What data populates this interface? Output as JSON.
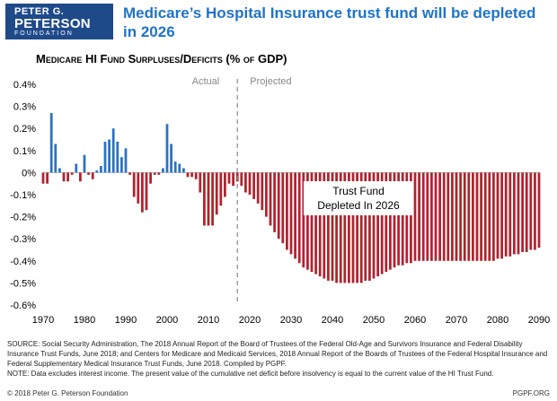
{
  "logo": {
    "line1": "PETER G.",
    "line2": "PETERSON",
    "line3": "FOUNDATION"
  },
  "headline": "Medicare’s Hospital Insurance trust fund will be depleted in 2026",
  "colors": {
    "positive": "#2a72c4",
    "negative": "#b0232e",
    "headline": "#1f73c8",
    "logo": "#1f4a8a"
  },
  "source": {
    "text": "SOURCE: Social Security Administration, The 2018 Annual Report of the Board of Trustees of the Federal Old-Age and Survivors Insurance and Federal Disability Insurance Trust Funds, June 2018; and Centers for Medicare and Medicaid Services, 2018 Annual Report of the Boards of Trustees of the Federal Hospital Insurance and Federal Supplementary Medical Insurance Trust Funds, June 2018. Compiled by PGPF.",
    "note": "NOTE: Data excludes interest income. The present value of the cumulative net deficit before insolvency is equal to the current value of the HI Trust Fund."
  },
  "footer": {
    "copyright": "© 2018 Peter G. Peterson Foundation",
    "site": "PGPF.ORG"
  },
  "chart_data": {
    "type": "bar",
    "title": "Medicare HI Fund Surpluses/Deficits (% of GDP)",
    "xlabel": "",
    "ylabel": "",
    "xlim": [
      1970,
      2090
    ],
    "ylim": [
      -0.6,
      0.4
    ],
    "x_ticks": [
      1970,
      1980,
      1990,
      2000,
      2010,
      2020,
      2030,
      2040,
      2050,
      2060,
      2070,
      2080,
      2090
    ],
    "y_ticks": [
      0.4,
      0.3,
      0.2,
      0.1,
      0,
      -0.1,
      -0.2,
      -0.3,
      -0.4,
      -0.5,
      -0.6
    ],
    "y_tick_labels": [
      "0.4%",
      "0.3%",
      "0.2%",
      "0.1%",
      "0%",
      "-0.1%",
      "-0.2%",
      "-0.3%",
      "-0.4%",
      "-0.5%",
      "-0.6%"
    ],
    "divider_year": 2017,
    "region_labels": {
      "actual": "Actual",
      "projected": "Projected"
    },
    "annotation": {
      "line1": "Trust Fund",
      "line2": "Depleted In 2026"
    },
    "years": [
      1970,
      1971,
      1972,
      1973,
      1974,
      1975,
      1976,
      1977,
      1978,
      1979,
      1980,
      1981,
      1982,
      1983,
      1984,
      1985,
      1986,
      1987,
      1988,
      1989,
      1990,
      1991,
      1992,
      1993,
      1994,
      1995,
      1996,
      1997,
      1998,
      1999,
      2000,
      2001,
      2002,
      2003,
      2004,
      2005,
      2006,
      2007,
      2008,
      2009,
      2010,
      2011,
      2012,
      2013,
      2014,
      2015,
      2016,
      2017,
      2018,
      2019,
      2020,
      2021,
      2022,
      2023,
      2024,
      2025,
      2026,
      2027,
      2028,
      2029,
      2030,
      2031,
      2032,
      2033,
      2034,
      2035,
      2036,
      2037,
      2038,
      2039,
      2040,
      2041,
      2042,
      2043,
      2044,
      2045,
      2046,
      2047,
      2048,
      2049,
      2050,
      2051,
      2052,
      2053,
      2054,
      2055,
      2056,
      2057,
      2058,
      2059,
      2060,
      2061,
      2062,
      2063,
      2064,
      2065,
      2066,
      2067,
      2068,
      2069,
      2070,
      2071,
      2072,
      2073,
      2074,
      2075,
      2076,
      2077,
      2078,
      2079,
      2080,
      2081,
      2082,
      2083,
      2084,
      2085,
      2086,
      2087,
      2088,
      2089,
      2090
    ],
    "values": [
      -0.05,
      -0.05,
      0.27,
      0.13,
      0.02,
      -0.04,
      -0.04,
      -0.01,
      0.04,
      -0.04,
      0.08,
      -0.01,
      -0.03,
      0.01,
      0.03,
      0.14,
      0.15,
      0.2,
      0.14,
      0.07,
      0.11,
      -0.01,
      -0.11,
      -0.14,
      -0.18,
      -0.17,
      -0.05,
      -0.01,
      -0.01,
      0.02,
      0.22,
      0.13,
      0.05,
      0.04,
      0.02,
      -0.02,
      -0.02,
      -0.03,
      -0.09,
      -0.24,
      -0.24,
      -0.24,
      -0.19,
      -0.15,
      -0.11,
      -0.05,
      -0.06,
      -0.04,
      -0.06,
      -0.09,
      -0.1,
      -0.12,
      -0.14,
      -0.17,
      -0.2,
      -0.24,
      -0.27,
      -0.3,
      -0.32,
      -0.35,
      -0.37,
      -0.39,
      -0.41,
      -0.43,
      -0.44,
      -0.45,
      -0.46,
      -0.47,
      -0.48,
      -0.49,
      -0.49,
      -0.5,
      -0.5,
      -0.5,
      -0.5,
      -0.5,
      -0.5,
      -0.5,
      -0.49,
      -0.49,
      -0.48,
      -0.47,
      -0.46,
      -0.45,
      -0.44,
      -0.43,
      -0.42,
      -0.42,
      -0.41,
      -0.41,
      -0.4,
      -0.4,
      -0.4,
      -0.4,
      -0.4,
      -0.4,
      -0.4,
      -0.4,
      -0.4,
      -0.4,
      -0.4,
      -0.4,
      -0.4,
      -0.4,
      -0.4,
      -0.4,
      -0.4,
      -0.4,
      -0.4,
      -0.4,
      -0.39,
      -0.39,
      -0.38,
      -0.38,
      -0.37,
      -0.37,
      -0.36,
      -0.36,
      -0.35,
      -0.35,
      -0.34
    ]
  }
}
